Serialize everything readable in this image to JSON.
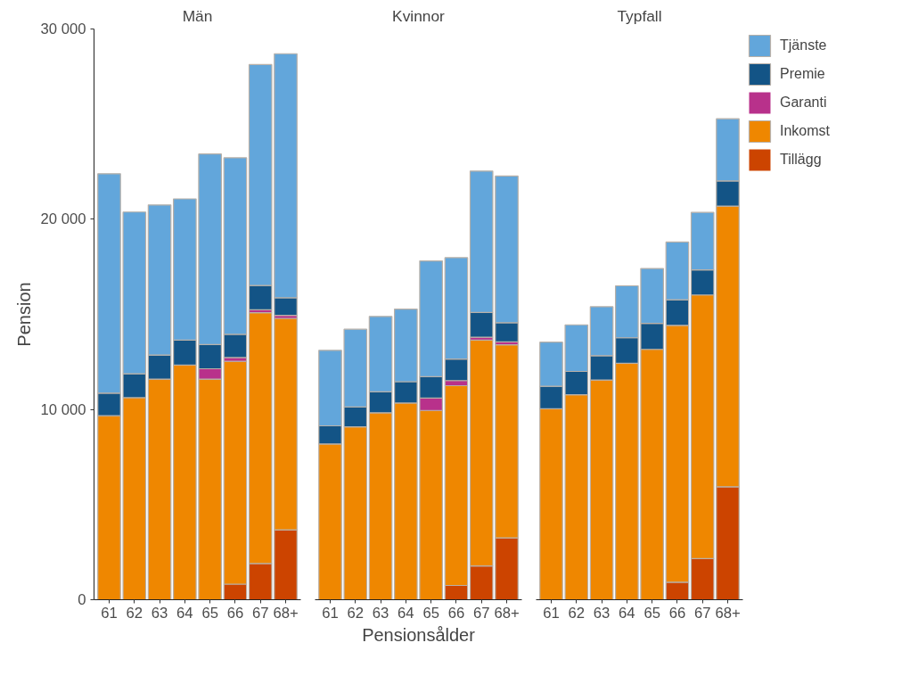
{
  "chart_data": [
    {
      "type": "bar",
      "title": "Män",
      "ylabel": "Pension",
      "stacked": true,
      "categories": [
        "61",
        "62",
        "63",
        "64",
        "65",
        "66",
        "67",
        "68+"
      ],
      "ylim": [
        0,
        30000
      ],
      "yticks": [
        0,
        {
          "value": 10000,
          "label": "10 000"
        },
        {
          "value": 20000,
          "label": "20 000"
        },
        {
          "value": 30000,
          "label": "30 000"
        }
      ],
      "series": [
        {
          "color": "#cc4400",
          "values": [
            0,
            0,
            0,
            0,
            0,
            820,
            1900,
            3670
          ]
        },
        {
          "color": "#ef8700",
          "values": [
            9670,
            10620,
            11600,
            12330,
            11600,
            11710,
            13190,
            11120
          ]
        },
        {
          "color": "#b8318b",
          "values": [
            0,
            0,
            0,
            0,
            540,
            200,
            150,
            160
          ]
        },
        {
          "color": "#135486",
          "values": [
            1190,
            1260,
            1260,
            1320,
            1270,
            1220,
            1280,
            920
          ]
        },
        {
          "color": "#62a6db",
          "values": [
            11530,
            8500,
            7890,
            7420,
            10020,
            9280,
            11610,
            12830
          ]
        }
      ]
    },
    {
      "type": "bar",
      "title": "Kvinnor",
      "xlabel": "Pensionsålder",
      "stacked": true,
      "tick_labels": "x",
      "categories": [
        "61",
        "62",
        "63",
        "64",
        "65",
        "66",
        "67",
        "68+"
      ],
      "ylim": [
        0,
        30000
      ],
      "series": [
        {
          "color": "#cc4400",
          "values": [
            0,
            0,
            0,
            0,
            0,
            750,
            1780,
            3250
          ]
        },
        {
          "color": "#ef8700",
          "values": [
            8190,
            9090,
            9830,
            10340,
            9950,
            10500,
            11870,
            10150
          ]
        },
        {
          "color": "#b8318b",
          "values": [
            0,
            0,
            0,
            0,
            650,
            270,
            150,
            150
          ]
        },
        {
          "color": "#135486",
          "values": [
            950,
            1040,
            1100,
            1120,
            1120,
            1130,
            1300,
            1010
          ]
        },
        {
          "color": "#62a6db",
          "values": [
            3970,
            4090,
            3960,
            3820,
            6090,
            5330,
            7430,
            7710
          ]
        }
      ]
    },
    {
      "type": "bar",
      "title": "Typfall",
      "stacked": true,
      "tick_labels": "x",
      "legend": "right",
      "categories": [
        "61",
        "62",
        "63",
        "64",
        "65",
        "66",
        "67",
        "68+"
      ],
      "ylim": [
        0,
        30000
      ],
      "series": [
        {
          "name": "Tillägg",
          "color": "#cc4400",
          "values": [
            0,
            0,
            0,
            0,
            0,
            920,
            2160,
            5940
          ]
        },
        {
          "name": "Inkomst",
          "color": "#ef8700",
          "values": [
            10040,
            10780,
            11550,
            12430,
            13160,
            13500,
            13860,
            14750
          ]
        },
        {
          "name": "Garanti",
          "color": "#b8318b",
          "values": [
            0,
            0,
            0,
            0,
            0,
            0,
            0,
            0
          ]
        },
        {
          "name": "Premie",
          "color": "#135486",
          "values": [
            1180,
            1220,
            1280,
            1340,
            1370,
            1350,
            1320,
            1320
          ]
        },
        {
          "name": "Tjänste",
          "color": "#62a6db",
          "values": [
            2320,
            2450,
            2570,
            2730,
            2880,
            3030,
            3020,
            3270
          ]
        }
      ]
    }
  ]
}
